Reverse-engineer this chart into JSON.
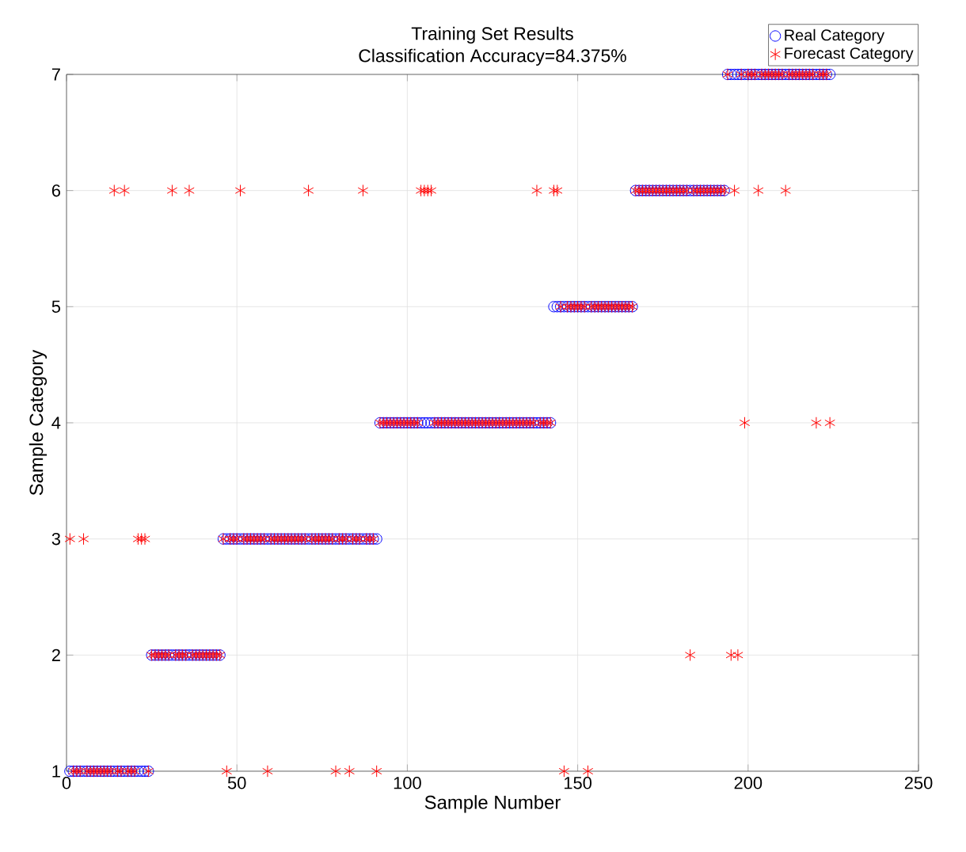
{
  "chart_data": {
    "type": "scatter",
    "title": "Training Set Results",
    "subtitle": "Classification Accuracy=84.375%",
    "xlabel": "Sample Number",
    "ylabel": "Sample Category",
    "xlim": [
      0,
      250
    ],
    "xticks": [
      0,
      50,
      100,
      150,
      200,
      250
    ],
    "ylim": [
      1,
      7
    ],
    "yticks": [
      1,
      2,
      3,
      4,
      5,
      6,
      7
    ],
    "grid": true,
    "legend": "top right",
    "x": [
      1,
      2,
      3,
      4,
      5,
      6,
      7,
      8,
      9,
      10,
      11,
      12,
      13,
      14,
      15,
      16,
      17,
      18,
      19,
      20,
      21,
      22,
      23,
      24,
      25,
      26,
      27,
      28,
      29,
      30,
      31,
      32,
      33,
      34,
      35,
      36,
      37,
      38,
      39,
      40,
      41,
      42,
      43,
      44,
      45,
      46,
      47,
      48,
      49,
      50,
      51,
      52,
      53,
      54,
      55,
      56,
      57,
      58,
      59,
      60,
      61,
      62,
      63,
      64,
      65,
      66,
      67,
      68,
      69,
      70,
      71,
      72,
      73,
      74,
      75,
      76,
      77,
      78,
      79,
      80,
      81,
      82,
      83,
      84,
      85,
      86,
      87,
      88,
      89,
      90,
      91,
      92,
      93,
      94,
      95,
      96,
      97,
      98,
      99,
      100,
      101,
      102,
      103,
      104,
      105,
      106,
      107,
      108,
      109,
      110,
      111,
      112,
      113,
      114,
      115,
      116,
      117,
      118,
      119,
      120,
      121,
      122,
      123,
      124,
      125,
      126,
      127,
      128,
      129,
      130,
      131,
      132,
      133,
      134,
      135,
      136,
      137,
      138,
      139,
      140,
      141,
      142,
      143,
      144,
      145,
      146,
      147,
      148,
      149,
      150,
      151,
      152,
      153,
      154,
      155,
      156,
      157,
      158,
      159,
      160,
      161,
      162,
      163,
      164,
      165,
      166,
      167,
      168,
      169,
      170,
      171,
      172,
      173,
      174,
      175,
      176,
      177,
      178,
      179,
      180,
      181,
      182,
      183,
      184,
      185,
      186,
      187,
      188,
      189,
      190,
      191,
      192,
      193,
      194,
      195,
      196,
      197,
      198,
      199,
      200,
      201,
      202,
      203,
      204,
      205,
      206,
      207,
      208,
      209,
      210,
      211,
      212,
      213,
      214,
      215,
      216,
      217,
      218,
      219,
      220,
      221,
      222,
      223,
      224
    ],
    "series": [
      {
        "name": "Real Category",
        "color": "#0000ff",
        "marker": "circle",
        "values": [
          1,
          1,
          1,
          1,
          1,
          1,
          1,
          1,
          1,
          1,
          1,
          1,
          1,
          1,
          1,
          1,
          1,
          1,
          1,
          1,
          1,
          1,
          1,
          1,
          2,
          2,
          2,
          2,
          2,
          2,
          2,
          2,
          2,
          2,
          2,
          2,
          2,
          2,
          2,
          2,
          2,
          2,
          2,
          2,
          2,
          3,
          3,
          3,
          3,
          3,
          3,
          3,
          3,
          3,
          3,
          3,
          3,
          3,
          3,
          3,
          3,
          3,
          3,
          3,
          3,
          3,
          3,
          3,
          3,
          3,
          3,
          3,
          3,
          3,
          3,
          3,
          3,
          3,
          3,
          3,
          3,
          3,
          3,
          3,
          3,
          3,
          3,
          3,
          3,
          3,
          3,
          4,
          4,
          4,
          4,
          4,
          4,
          4,
          4,
          4,
          4,
          4,
          4,
          4,
          4,
          4,
          4,
          4,
          4,
          4,
          4,
          4,
          4,
          4,
          4,
          4,
          4,
          4,
          4,
          4,
          4,
          4,
          4,
          4,
          4,
          4,
          4,
          4,
          4,
          4,
          4,
          4,
          4,
          4,
          4,
          4,
          4,
          4,
          4,
          4,
          4,
          4,
          5,
          5,
          5,
          5,
          5,
          5,
          5,
          5,
          5,
          5,
          5,
          5,
          5,
          5,
          5,
          5,
          5,
          5,
          5,
          5,
          5,
          5,
          5,
          5,
          6,
          6,
          6,
          6,
          6,
          6,
          6,
          6,
          6,
          6,
          6,
          6,
          6,
          6,
          6,
          6,
          6,
          6,
          6,
          6,
          6,
          6,
          6,
          6,
          6,
          6,
          6,
          7,
          7,
          7,
          7,
          7,
          7,
          7,
          7,
          7,
          7,
          7,
          7,
          7,
          7,
          7,
          7,
          7,
          7,
          7,
          7,
          7,
          7,
          7,
          7,
          7,
          7,
          7,
          7,
          7,
          7,
          7
        ]
      },
      {
        "name": "Forecast Category",
        "color": "#ff0000",
        "marker": "cross",
        "values": [
          3,
          1,
          1,
          1,
          3,
          1,
          1,
          1,
          1,
          1,
          1,
          1,
          1,
          6,
          1,
          1,
          6,
          1,
          1,
          1,
          3,
          3,
          3,
          1,
          2,
          2,
          2,
          2,
          2,
          2,
          6,
          2,
          2,
          2,
          2,
          6,
          2,
          2,
          2,
          2,
          2,
          2,
          2,
          2,
          2,
          3,
          1,
          3,
          3,
          3,
          6,
          3,
          3,
          3,
          3,
          3,
          3,
          3,
          1,
          3,
          3,
          3,
          3,
          3,
          3,
          3,
          3,
          3,
          3,
          3,
          6,
          3,
          3,
          3,
          3,
          3,
          3,
          3,
          1,
          3,
          3,
          3,
          1,
          3,
          3,
          3,
          6,
          3,
          3,
          3,
          1,
          4,
          4,
          4,
          4,
          4,
          4,
          4,
          4,
          4,
          4,
          4,
          4,
          6,
          6,
          6,
          6,
          4,
          4,
          4,
          4,
          4,
          4,
          4,
          4,
          4,
          4,
          4,
          4,
          4,
          4,
          4,
          4,
          4,
          4,
          4,
          4,
          4,
          4,
          4,
          4,
          4,
          4,
          4,
          4,
          4,
          4,
          6,
          4,
          4,
          4,
          4,
          6,
          6,
          5,
          1,
          5,
          5,
          5,
          5,
          5,
          5,
          1,
          5,
          5,
          5,
          5,
          5,
          5,
          5,
          5,
          5,
          5,
          5,
          5,
          5,
          6,
          6,
          6,
          6,
          6,
          6,
          6,
          6,
          6,
          6,
          6,
          6,
          6,
          6,
          6,
          6,
          2,
          6,
          6,
          6,
          6,
          6,
          6,
          6,
          6,
          6,
          6,
          7,
          2,
          6,
          2,
          7,
          4,
          7,
          7,
          7,
          6,
          7,
          7,
          7,
          7,
          7,
          7,
          7,
          6,
          7,
          7,
          7,
          7,
          7,
          7,
          7,
          7,
          4,
          7,
          7,
          7,
          4
        ]
      }
    ]
  }
}
